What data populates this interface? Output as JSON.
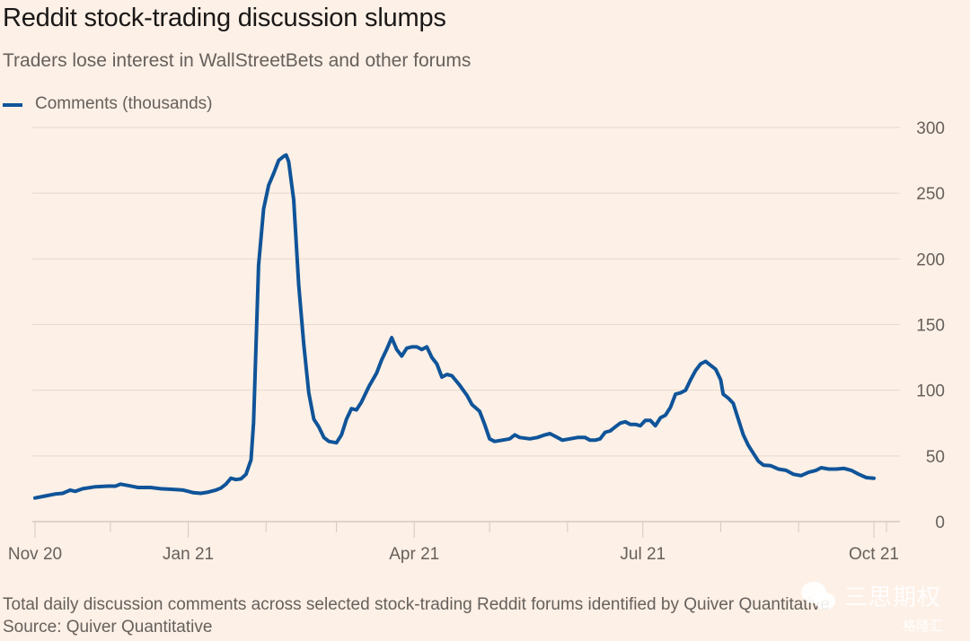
{
  "chart_data": {
    "type": "line",
    "title": "Reddit stock-trading discussion slumps",
    "subtitle": "Traders lose interest in WallStreetBets and other forums",
    "xlabel": "",
    "ylabel": "Comments (thousands)",
    "legend": [
      {
        "name": "Comments (thousands)",
        "color": "#0f5499"
      }
    ],
    "legend_position": "top-left",
    "y_axis_side": "right",
    "ylim": [
      0,
      300
    ],
    "yticks": [
      0,
      50,
      100,
      150,
      200,
      250,
      300
    ],
    "xlim": [
      "2020-11-01",
      "2021-10-06"
    ],
    "xticks": [
      {
        "date": "2020-11-01",
        "label": "Nov 20"
      },
      {
        "date": "2020-12-01",
        "label": ""
      },
      {
        "date": "2021-01-01",
        "label": "Jan 21"
      },
      {
        "date": "2021-02-01",
        "label": ""
      },
      {
        "date": "2021-03-01",
        "label": ""
      },
      {
        "date": "2021-04-01",
        "label": "Apr 21"
      },
      {
        "date": "2021-05-01",
        "label": ""
      },
      {
        "date": "2021-06-01",
        "label": ""
      },
      {
        "date": "2021-07-01",
        "label": "Jul 21"
      },
      {
        "date": "2021-08-01",
        "label": ""
      },
      {
        "date": "2021-09-01",
        "label": ""
      },
      {
        "date": "2021-10-01",
        "label": "Oct 21"
      },
      {
        "date": "2021-10-06",
        "label": ""
      }
    ],
    "grid": true,
    "series": [
      {
        "name": "Comments (thousands)",
        "color": "#0f5499",
        "points": [
          [
            "2020-11-01",
            18
          ],
          [
            "2020-11-05",
            19.5
          ],
          [
            "2020-11-09",
            21
          ],
          [
            "2020-11-12",
            21.5
          ],
          [
            "2020-11-15",
            24
          ],
          [
            "2020-11-17",
            23
          ],
          [
            "2020-11-20",
            25
          ],
          [
            "2020-11-25",
            26.5
          ],
          [
            "2020-11-30",
            27
          ],
          [
            "2020-12-03",
            27
          ],
          [
            "2020-12-05",
            28.5
          ],
          [
            "2020-12-08",
            27.5
          ],
          [
            "2020-12-12",
            26
          ],
          [
            "2020-12-17",
            26
          ],
          [
            "2020-12-21",
            25
          ],
          [
            "2020-12-26",
            24.5
          ],
          [
            "2020-12-30",
            24
          ],
          [
            "2021-01-01",
            23
          ],
          [
            "2021-01-03",
            22
          ],
          [
            "2021-01-06",
            21.5
          ],
          [
            "2021-01-09",
            22.5
          ],
          [
            "2021-01-12",
            24
          ],
          [
            "2021-01-14",
            25.5
          ],
          [
            "2021-01-16",
            28.5
          ],
          [
            "2021-01-18",
            33
          ],
          [
            "2021-01-20",
            32
          ],
          [
            "2021-01-22",
            32.5
          ],
          [
            "2021-01-24",
            36
          ],
          [
            "2021-01-26",
            47
          ],
          [
            "2021-01-27",
            75
          ],
          [
            "2021-01-29",
            195
          ],
          [
            "2021-01-31",
            238
          ],
          [
            "2021-02-02",
            256
          ],
          [
            "2021-02-04",
            265
          ],
          [
            "2021-02-06",
            275
          ],
          [
            "2021-02-08",
            278
          ],
          [
            "2021-02-09",
            279
          ],
          [
            "2021-02-10",
            274
          ],
          [
            "2021-02-12",
            245
          ],
          [
            "2021-02-14",
            180
          ],
          [
            "2021-02-16",
            135
          ],
          [
            "2021-02-18",
            98
          ],
          [
            "2021-02-20",
            78
          ],
          [
            "2021-02-22",
            72
          ],
          [
            "2021-02-24",
            64
          ],
          [
            "2021-02-26",
            61
          ],
          [
            "2021-03-01",
            60
          ],
          [
            "2021-03-03",
            66
          ],
          [
            "2021-03-05",
            78
          ],
          [
            "2021-03-07",
            86
          ],
          [
            "2021-03-09",
            85
          ],
          [
            "2021-03-11",
            91
          ],
          [
            "2021-03-14",
            103
          ],
          [
            "2021-03-17",
            113
          ],
          [
            "2021-03-19",
            123
          ],
          [
            "2021-03-21",
            131
          ],
          [
            "2021-03-23",
            140
          ],
          [
            "2021-03-25",
            131
          ],
          [
            "2021-03-27",
            126
          ],
          [
            "2021-03-29",
            132
          ],
          [
            "2021-03-31",
            133
          ],
          [
            "2021-04-02",
            133
          ],
          [
            "2021-04-04",
            131
          ],
          [
            "2021-04-06",
            133
          ],
          [
            "2021-04-08",
            125
          ],
          [
            "2021-04-10",
            120
          ],
          [
            "2021-04-12",
            110
          ],
          [
            "2021-04-14",
            112
          ],
          [
            "2021-04-16",
            111
          ],
          [
            "2021-04-19",
            104
          ],
          [
            "2021-04-22",
            96
          ],
          [
            "2021-04-24",
            89
          ],
          [
            "2021-04-27",
            84
          ],
          [
            "2021-04-29",
            74
          ],
          [
            "2021-05-01",
            63
          ],
          [
            "2021-05-03",
            61
          ],
          [
            "2021-05-06",
            62
          ],
          [
            "2021-05-09",
            63
          ],
          [
            "2021-05-11",
            66
          ],
          [
            "2021-05-13",
            64
          ],
          [
            "2021-05-17",
            63
          ],
          [
            "2021-05-20",
            64
          ],
          [
            "2021-05-23",
            66
          ],
          [
            "2021-05-25",
            67
          ],
          [
            "2021-05-27",
            65
          ],
          [
            "2021-05-30",
            62
          ],
          [
            "2021-06-02",
            63
          ],
          [
            "2021-06-05",
            64
          ],
          [
            "2021-06-08",
            64
          ],
          [
            "2021-06-10",
            62
          ],
          [
            "2021-06-12",
            62
          ],
          [
            "2021-06-14",
            63
          ],
          [
            "2021-06-16",
            68
          ],
          [
            "2021-06-18",
            69
          ],
          [
            "2021-06-20",
            72
          ],
          [
            "2021-06-22",
            75
          ],
          [
            "2021-06-24",
            76
          ],
          [
            "2021-06-26",
            74
          ],
          [
            "2021-06-28",
            74
          ],
          [
            "2021-06-30",
            73
          ],
          [
            "2021-07-02",
            77
          ],
          [
            "2021-07-04",
            77
          ],
          [
            "2021-07-06",
            73
          ],
          [
            "2021-07-08",
            79
          ],
          [
            "2021-07-10",
            81
          ],
          [
            "2021-07-12",
            87
          ],
          [
            "2021-07-14",
            97
          ],
          [
            "2021-07-16",
            98
          ],
          [
            "2021-07-18",
            100
          ],
          [
            "2021-07-20",
            108
          ],
          [
            "2021-07-22",
            115
          ],
          [
            "2021-07-24",
            120
          ],
          [
            "2021-07-26",
            122
          ],
          [
            "2021-07-28",
            119
          ],
          [
            "2021-07-30",
            116
          ],
          [
            "2021-08-01",
            108
          ],
          [
            "2021-08-02",
            97
          ],
          [
            "2021-08-04",
            94
          ],
          [
            "2021-08-06",
            90
          ],
          [
            "2021-08-08",
            78
          ],
          [
            "2021-08-10",
            66
          ],
          [
            "2021-08-12",
            58
          ],
          [
            "2021-08-14",
            52
          ],
          [
            "2021-08-16",
            46
          ],
          [
            "2021-08-18",
            43
          ],
          [
            "2021-08-21",
            42.5
          ],
          [
            "2021-08-24",
            40
          ],
          [
            "2021-08-27",
            39
          ],
          [
            "2021-08-30",
            36
          ],
          [
            "2021-09-02",
            35
          ],
          [
            "2021-09-05",
            37.5
          ],
          [
            "2021-09-08",
            39
          ],
          [
            "2021-09-10",
            41
          ],
          [
            "2021-09-13",
            40
          ],
          [
            "2021-09-16",
            40
          ],
          [
            "2021-09-19",
            40.5
          ],
          [
            "2021-09-22",
            39
          ],
          [
            "2021-09-25",
            36
          ],
          [
            "2021-09-28",
            33.5
          ],
          [
            "2021-10-01",
            33
          ]
        ]
      }
    ],
    "footnote": "Total daily discussion comments across selected stock-trading Reddit forums identified by Quiver Quantitative",
    "source": "Source: Quiver Quantitative"
  },
  "watermark": {
    "text1": "三思期权",
    "text2": "格隆汇"
  }
}
